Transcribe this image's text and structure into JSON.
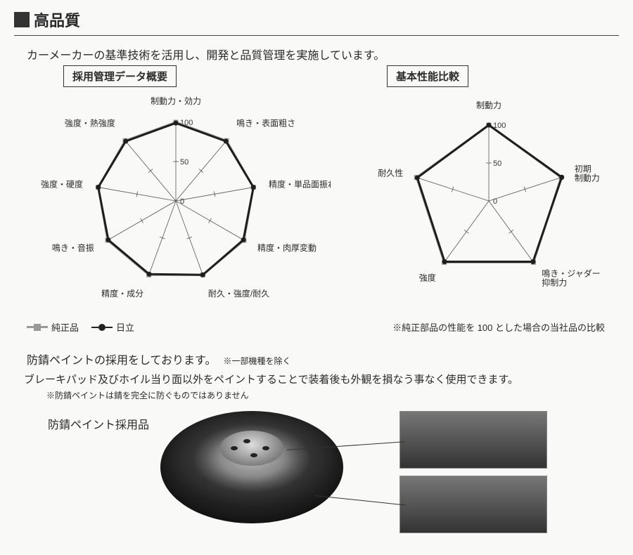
{
  "header": {
    "title": "高品質"
  },
  "intro": "カーメーカーの基準技術を活用し、開発と品質管理を実施しています。",
  "chart_left": {
    "type": "radar",
    "title": "採用管理データ概要",
    "axes": [
      "制動力・効力",
      "鳴き・表面粗さ",
      "精度・単品面振れ",
      "精度・肉厚変動",
      "耐久・強度/耐久",
      "精度・成分",
      "鳴き・音振",
      "強度・硬度",
      "強度・熱強度"
    ],
    "scale_labels": [
      "0",
      "50",
      "100"
    ],
    "scale_max": 100,
    "series": [
      {
        "name": "純正品",
        "values": [
          100,
          100,
          100,
          100,
          100,
          100,
          100,
          100,
          100
        ],
        "color": "#9a9a9a",
        "marker": "square"
      },
      {
        "name": "日立",
        "values": [
          99,
          99,
          100,
          99,
          100,
          99,
          99,
          100,
          99
        ],
        "color": "#1e1e1e",
        "marker": "circle"
      }
    ],
    "grid_color": "#555",
    "bg": "#f9f9f8",
    "line_width": 3,
    "marker_size": 7,
    "label_fontsize": 12
  },
  "chart_right": {
    "type": "radar",
    "title": "基本性能比較",
    "axes": [
      "制動力",
      "初期制動力",
      "鳴き・ジャダー抑制力",
      "強度",
      "耐久性"
    ],
    "axes_label_lines": {
      "1": [
        "初期",
        "制動力"
      ],
      "2": [
        "鳴き・ジャダー",
        "抑制力"
      ]
    },
    "scale_labels": [
      "0",
      "50",
      "100"
    ],
    "scale_max": 100,
    "series": [
      {
        "name": "純正品",
        "values": [
          100,
          100,
          100,
          100,
          100
        ],
        "color": "#9a9a9a",
        "marker": "square"
      },
      {
        "name": "日立",
        "values": [
          100,
          101,
          99,
          99,
          99
        ],
        "color": "#1e1e1e",
        "marker": "circle"
      }
    ],
    "grid_color": "#555",
    "bg": "#f9f9f8",
    "line_width": 3,
    "marker_size": 7,
    "label_fontsize": 12
  },
  "legend": {
    "genuine": "純正品",
    "hitachi": "日立"
  },
  "compare_note": "※純正部品の性能を 100 とした場合の当社品の比較",
  "paint": {
    "line1": "防錆ペイントの採用をしております。",
    "note1": "※一部機種を除く",
    "line2": "ブレーキパッド及びホイル当り面以外をペイントすることで装着後も外観を損なう事なく使用できます。",
    "note2": "※防錆ペイントは錆を完全に防ぐものではありません",
    "product_label": "防錆ペイント採用品"
  }
}
